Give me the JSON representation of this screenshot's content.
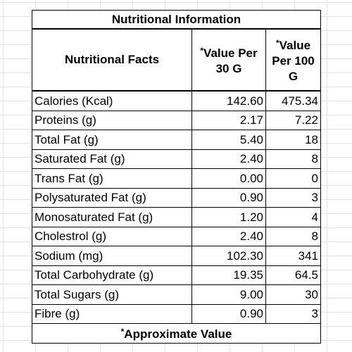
{
  "title": "Nutritional Information",
  "columns": {
    "facts": "Nutritional Facts",
    "per30": "Value Per 30 G",
    "per100": "Value Per 100 G",
    "marker": "*"
  },
  "rows": [
    {
      "name": "Calories (Kcal)",
      "per30": "142.60",
      "per100": "475.34"
    },
    {
      "name": "Proteins (g)",
      "per30": "2.17",
      "per100": "7.22"
    },
    {
      "name": "Total Fat (g)",
      "per30": "5.40",
      "per100": "18"
    },
    {
      "name": "Saturated Fat (g)",
      "per30": "2.40",
      "per100": "8"
    },
    {
      "name": "Trans Fat (g)",
      "per30": "0.00",
      "per100": "0"
    },
    {
      "name": "Polysaturated Fat (g)",
      "per30": "0.90",
      "per100": "3"
    },
    {
      "name": "Monosaturated Fat (g)",
      "per30": "1.20",
      "per100": "4"
    },
    {
      "name": "Cholestrol (g)",
      "per30": "2.40",
      "per100": "8"
    },
    {
      "name": "Sodium  (mg)",
      "per30": "102.30",
      "per100": "341"
    },
    {
      "name": "Total Carbohydrate (g)",
      "per30": "19.35",
      "per100": "64.5"
    },
    {
      "name": "Total Sugars (g)",
      "per30": "9.00",
      "per100": "30"
    },
    {
      "name": "Fibre (g)",
      "per30": "0.90",
      "per100": "3"
    }
  ],
  "footer": "Approximate Value"
}
